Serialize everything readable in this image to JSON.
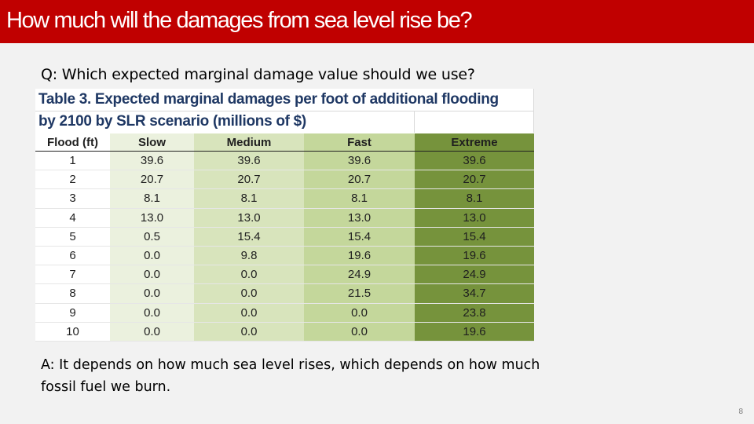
{
  "slide": {
    "title": "How much will the damages from sea level rise be?",
    "question": "Q: Which expected marginal damage value should we use?",
    "answer": "A: It depends on how much sea level rises, which depends on how much fossil fuel we burn.",
    "page_number": "8"
  },
  "table": {
    "caption_line1": "Table 3. Expected marginal damages per foot of additional flooding",
    "caption_line2": "by 2100 by SLR scenario (millions of $)",
    "headers": [
      "Flood (ft)",
      "Slow",
      "Medium",
      "Fast",
      "Extreme"
    ],
    "rows": [
      [
        "1",
        "39.6",
        "39.6",
        "39.6",
        "39.6"
      ],
      [
        "2",
        "20.7",
        "20.7",
        "20.7",
        "20.7"
      ],
      [
        "3",
        "8.1",
        "8.1",
        "8.1",
        "8.1"
      ],
      [
        "4",
        "13.0",
        "13.0",
        "13.0",
        "13.0"
      ],
      [
        "5",
        "0.5",
        "15.4",
        "15.4",
        "15.4"
      ],
      [
        "6",
        "0.0",
        "9.8",
        "19.6",
        "19.6"
      ],
      [
        "7",
        "0.0",
        "0.0",
        "24.9",
        "24.9"
      ],
      [
        "8",
        "0.0",
        "0.0",
        "21.5",
        "34.7"
      ],
      [
        "9",
        "0.0",
        "0.0",
        "0.0",
        "23.8"
      ],
      [
        "10",
        "0.0",
        "0.0",
        "0.0",
        "19.6"
      ]
    ],
    "column_colors": [
      "#ffffff",
      "#ebf1de",
      "#d8e4bc",
      "#c4d79b",
      "#76933c"
    ]
  },
  "colors": {
    "title_bar": "#c00000",
    "background": "#f2f2f2",
    "caption_text": "#1f3864"
  }
}
